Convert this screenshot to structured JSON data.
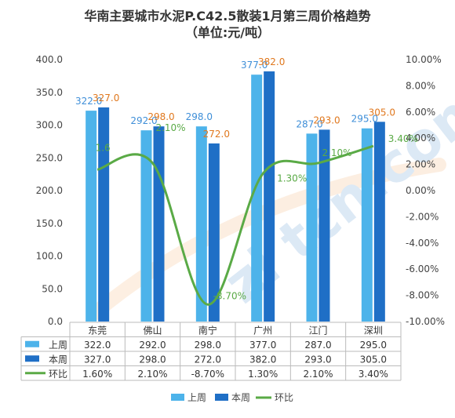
{
  "chart_data": {
    "type": "bar",
    "title_line1": "华南主要城市水泥P.C42.5散装1月第三周价格趋势",
    "title_line2": "（单位:元/吨）",
    "categories": [
      "东莞",
      "佛山",
      "南宁",
      "广州",
      "江门",
      "深圳"
    ],
    "series": [
      {
        "name": "上周",
        "type": "bar",
        "color": "#4db3ea",
        "label_color": "#3f8fd8",
        "values": [
          322.0,
          292.0,
          298.0,
          377.0,
          287.0,
          295.0
        ],
        "labels": [
          "322.0",
          "292.0",
          "298.0",
          "377.0",
          "287.0",
          "295.0"
        ]
      },
      {
        "name": "本周",
        "type": "bar",
        "color": "#1f6fc6",
        "label_color": "#e0781e",
        "values": [
          327.0,
          298.0,
          272.0,
          382.0,
          293.0,
          305.0
        ],
        "labels": [
          "327.0",
          "298.0",
          "272.0",
          "382.0",
          "293.0",
          "305.0"
        ]
      },
      {
        "name": "环比",
        "type": "line",
        "color": "#5aaa46",
        "label_color": "#5aaa46",
        "values": [
          1.6,
          2.1,
          -8.7,
          1.3,
          2.1,
          3.4
        ],
        "labels": [
          "1.6",
          "2.10%",
          "-8.70%",
          "1.30%",
          "2.10%",
          "3.40%"
        ]
      }
    ],
    "left_axis": {
      "min": 0,
      "max": 400,
      "ticks": [
        "0.0",
        "50.0",
        "100.0",
        "150.0",
        "200.0",
        "250.0",
        "300.0",
        "350.0",
        "400.0"
      ]
    },
    "right_axis": {
      "min": -10,
      "max": 10,
      "ticks": [
        "-10.00%",
        "-8.00%",
        "-6.00%",
        "-4.00%",
        "-2.00%",
        "0.00%",
        "2.00%",
        "4.00%",
        "6.00%",
        "8.00%",
        "10.00%"
      ]
    },
    "table": [
      {
        "name": "上周",
        "cells": [
          "322.0",
          "292.0",
          "298.0",
          "377.0",
          "287.0",
          "295.0"
        ]
      },
      {
        "name": "本周",
        "cells": [
          "327.0",
          "298.0",
          "272.0",
          "382.0",
          "293.0",
          "305.0"
        ]
      },
      {
        "name": "环比",
        "cells": [
          "1.60%",
          "2.10%",
          "-8.70%",
          "1.30%",
          "2.10%",
          "3.40%"
        ]
      }
    ],
    "legend": [
      "上周",
      "本周",
      "环比"
    ],
    "legend_position": "bottom",
    "grid": false
  },
  "watermark": "zi tcn.com"
}
